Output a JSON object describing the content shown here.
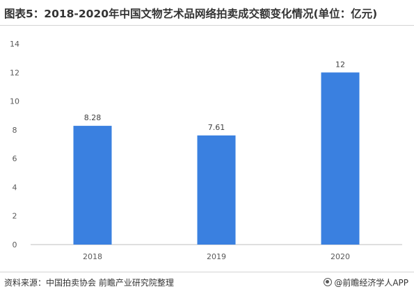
{
  "title": "图表5：2018-2020年中国文物艺术品网络拍卖成交额变化情况(单位：亿元)",
  "source": "资料来源：中国拍卖协会 前瞻产业研究院整理",
  "brand": "@前瞻经济学人APP",
  "colors": {
    "bar": "#3a80e0",
    "axis": "#bfbfbf",
    "text": "#595959"
  },
  "chart_data": {
    "type": "bar",
    "title": "图表5：2018-2020年中国文物艺术品网络拍卖成交额变化情况(单位：亿元)",
    "categories": [
      "2018",
      "2019",
      "2020"
    ],
    "values": [
      8.28,
      7.61,
      12
    ],
    "value_labels": [
      "8.28",
      "7.61",
      "12"
    ],
    "ylim": [
      0,
      14
    ],
    "yticks": [
      "0",
      "2",
      "4",
      "6",
      "8",
      "10",
      "12",
      "14"
    ],
    "grid": false,
    "legend": "none"
  }
}
